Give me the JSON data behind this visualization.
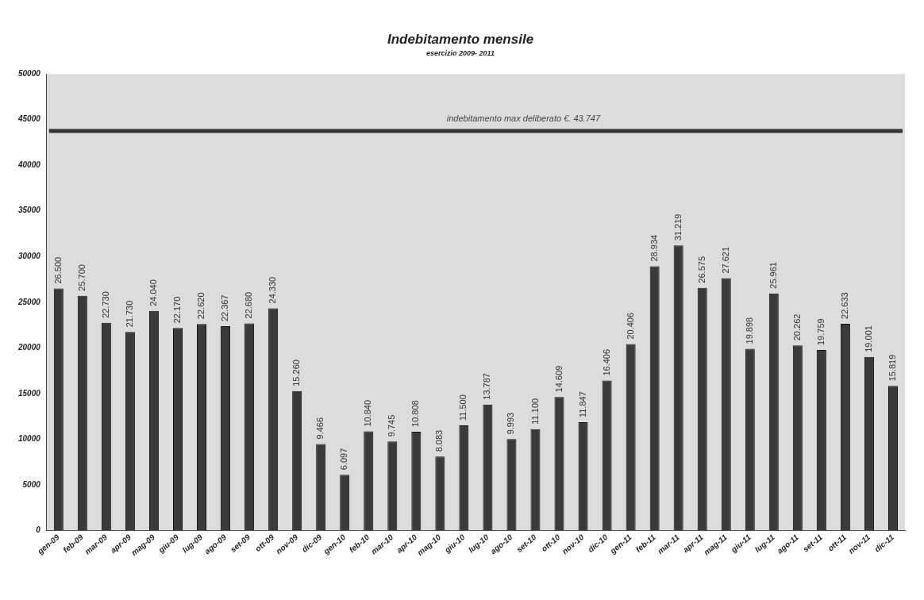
{
  "chart_data": {
    "type": "bar",
    "title": "Indebitamento mensile",
    "subtitle": "esercizio 2009- 2011",
    "categories": [
      "gen-09",
      "feb-09",
      "mar-09",
      "apr-09",
      "mag-09",
      "giu-09",
      "lug-09",
      "ago-09",
      "set-09",
      "ott-09",
      "nov-09",
      "dic-09",
      "gen-10",
      "feb-10",
      "mar-10",
      "apr-10",
      "mag-10",
      "giu-10",
      "lug-10",
      "ago-10",
      "set-10",
      "ott-10",
      "nov-10",
      "dic-10",
      "gen-11",
      "feb-11",
      "mar-11",
      "apr-11",
      "mag-11",
      "giu-11",
      "lug-11",
      "ago-11",
      "set-11",
      "ott-11",
      "nov-11",
      "dic-11"
    ],
    "values": [
      26500,
      25700,
      22730,
      21730,
      24040,
      22170,
      22620,
      22367,
      22680,
      24330,
      15260,
      9466,
      6097,
      10840,
      9745,
      10808,
      8083,
      11500,
      13787,
      9993,
      11100,
      14609,
      11847,
      16406,
      20406,
      28934,
      31219,
      26575,
      27621,
      19898,
      25961,
      20262,
      19759,
      22633,
      19001,
      15819
    ],
    "value_labels": [
      "26.500",
      "25.700",
      "22.730",
      "21.730",
      "24.040",
      "22.170",
      "22.620",
      "22.367",
      "22.680",
      "24.330",
      "15.260",
      "9.466",
      "6.097",
      "10.840",
      "9.745",
      "10.808",
      "8.083",
      "11.500",
      "13.787",
      "9.993",
      "11.100",
      "14.609",
      "11.847",
      "16.406",
      "20.406",
      "28.934",
      "31.219",
      "26.575",
      "27.621",
      "19.898",
      "25.961",
      "20.262",
      "19.759",
      "22.633",
      "19.001",
      "15.819"
    ],
    "color": "#3a3a3a",
    "ylim": [
      0,
      50000
    ],
    "yticks": [
      0,
      5000,
      10000,
      15000,
      20000,
      25000,
      30000,
      35000,
      40000,
      45000,
      50000
    ],
    "grid": false,
    "legend": false,
    "ref_lines": [
      {
        "axis": "y",
        "value": 43747,
        "label": "indebitamento max deliberato €. 43.747",
        "color": "#333333"
      }
    ]
  }
}
